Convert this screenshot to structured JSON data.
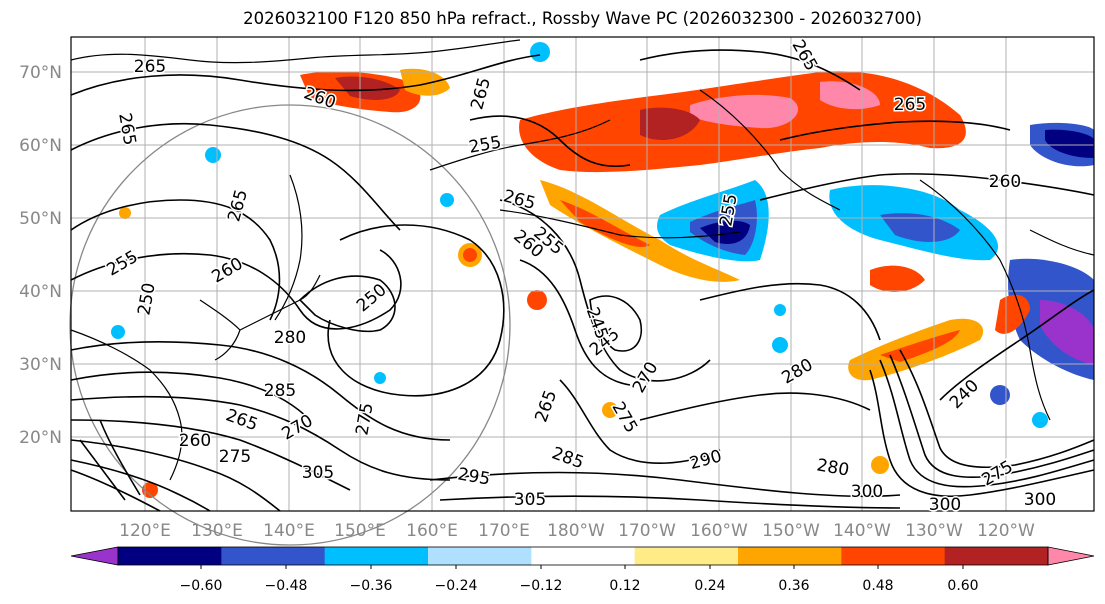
{
  "title": "2026032100 F120 850 hPa refract., Rossby Wave PC (2026032300 - 2026032700)",
  "lat_labels": [
    "70°N",
    "60°N",
    "50°N",
    "40°N",
    "30°N",
    "20°N"
  ],
  "lon_labels": [
    "120°E",
    "130°E",
    "140°E",
    "150°E",
    "160°E",
    "170°E",
    "180°W",
    "170°W",
    "160°W",
    "150°W",
    "140°W",
    "130°W",
    "120°W"
  ],
  "colorbar": {
    "tick_labels": [
      "−0.60",
      "−0.48",
      "−0.36",
      "−0.24",
      "−0.12",
      "0.12",
      "0.24",
      "0.36",
      "0.48",
      "0.60"
    ],
    "colors": [
      "#9933cc",
      "#000080",
      "#3355cc",
      "#00bfff",
      "#b0e0ff",
      "#ffffff",
      "#ffeb88",
      "#ffa500",
      "#ff4500",
      "#b22222",
      "#ff88aa"
    ]
  },
  "contour_labels": [
    "265",
    "260",
    "265",
    "265",
    "255",
    "265",
    "260",
    "265",
    "250",
    "280",
    "285",
    "265",
    "275",
    "270",
    "275",
    "260",
    "255",
    "255",
    "245",
    "270",
    "275",
    "255",
    "265",
    "260",
    "250",
    "245",
    "265",
    "285",
    "295",
    "280",
    "290",
    "280",
    "300",
    "305",
    "300",
    "305",
    "265",
    "240",
    "275",
    "300",
    "260"
  ],
  "colors": {
    "ocean": "#ffffff",
    "coast": "#000000",
    "contour": "#000000",
    "grid": "#b0b0b0"
  }
}
